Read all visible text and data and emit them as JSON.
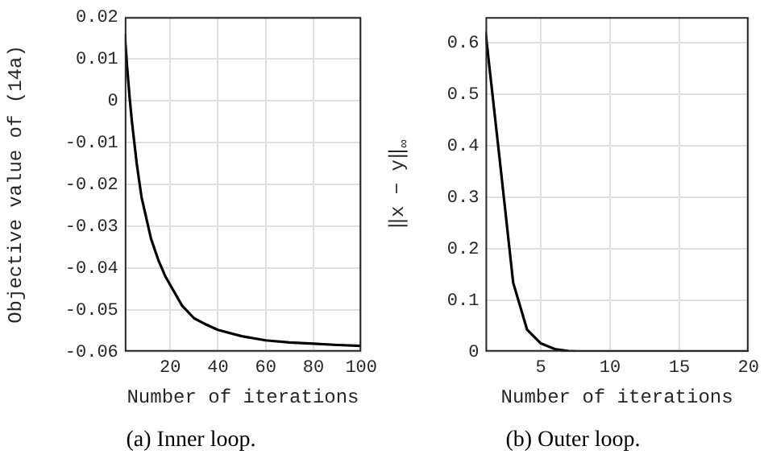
{
  "chart_data": [
    {
      "type": "line",
      "xlabel": "Number of iterations",
      "ylabel": "Objective value of (14a)",
      "annotations": [
        "(a) Inner loop."
      ],
      "x": [
        1,
        2,
        3,
        4,
        5,
        6,
        8,
        10,
        12,
        15,
        18,
        20,
        25,
        30,
        35,
        40,
        50,
        60,
        70,
        80,
        90,
        100
      ],
      "series": [
        {
          "color": "#000000",
          "values": [
            0.016,
            0.008,
            0.001,
            -0.005,
            -0.01,
            -0.015,
            -0.023,
            -0.028,
            -0.033,
            -0.038,
            -0.042,
            -0.044,
            -0.049,
            -0.052,
            -0.0535,
            -0.0548,
            -0.0563,
            -0.0573,
            -0.0578,
            -0.0581,
            -0.0584,
            -0.0586
          ]
        }
      ],
      "xlim": [
        1,
        100
      ],
      "xticks": [
        20,
        40,
        60,
        80,
        100
      ],
      "ylim": [
        -0.06,
        0.02
      ],
      "yticks": [
        -0.06,
        -0.05,
        -0.04,
        -0.03,
        -0.02,
        -0.01,
        0,
        0.01,
        0.02
      ],
      "grid": true,
      "legend": false,
      "marker": "none",
      "line_style": "solid"
    },
    {
      "type": "line",
      "xlabel": "Number of iterations",
      "ylabel": "‖x − y‖$_{∞}$",
      "annotations": [
        "(b) Outer loop."
      ],
      "x": [
        1,
        2,
        3,
        4,
        5,
        6,
        7,
        8,
        9,
        10,
        12,
        14,
        16,
        18,
        20
      ],
      "series": [
        {
          "color": "#000000",
          "values": [
            0.622,
            0.38,
            0.134,
            0.043,
            0.016,
            0.005,
            0.001,
            0,
            0,
            0,
            0,
            0,
            0,
            0,
            0
          ]
        }
      ],
      "xlim": [
        1,
        20
      ],
      "xticks": [
        5,
        10,
        15,
        20
      ],
      "ylim": [
        0,
        0.65
      ],
      "yticks": [
        0,
        0.1,
        0.2,
        0.3,
        0.4,
        0.5,
        0.6
      ],
      "grid": true,
      "legend": false,
      "marker": "none",
      "line_style": "solid"
    }
  ]
}
